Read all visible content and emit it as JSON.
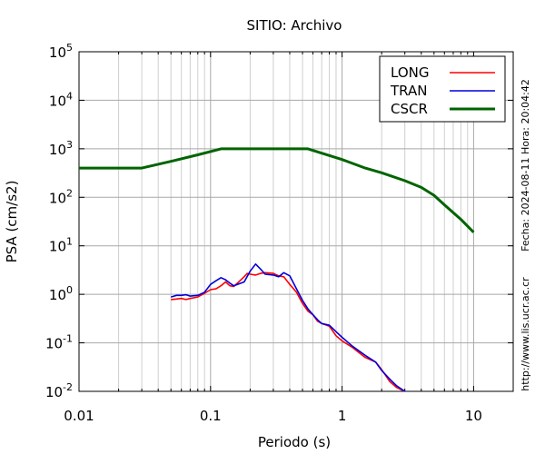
{
  "chart_data": {
    "type": "line",
    "title": "SITIO: Archivo",
    "xlabel": "Periodo (s)",
    "ylabel": "PSA (cm/s2)",
    "x_scale": "log",
    "y_scale": "log",
    "xlim": [
      0.01,
      20
    ],
    "ylim": [
      0.01,
      100000
    ],
    "x_ticks": [
      "0.01",
      "0.1",
      "1",
      "10"
    ],
    "y_ticks": [
      {
        "base": "10",
        "exp": "5",
        "value": 100000
      },
      {
        "base": "10",
        "exp": "4",
        "value": 10000
      },
      {
        "base": "10",
        "exp": "3",
        "value": 1000
      },
      {
        "base": "10",
        "exp": "2",
        "value": 100
      },
      {
        "base": "10",
        "exp": "1",
        "value": 10
      },
      {
        "base": "10",
        "exp": "0",
        "value": 1
      },
      {
        "base": "10",
        "exp": "-1",
        "value": 0.1
      },
      {
        "base": "10",
        "exp": "-2",
        "value": 0.01
      }
    ],
    "grid": true,
    "legend_position": "top-right",
    "side_labels": {
      "date": "Fecha: 2024-08-11  Hora: 20:04:42",
      "url": "http://www.lis.ucr.ac.cr"
    },
    "series": [
      {
        "name": "LONG",
        "color": "#ff0000",
        "points": [
          [
            0.05,
            0.78
          ],
          [
            0.055,
            0.8
          ],
          [
            0.06,
            0.82
          ],
          [
            0.065,
            0.78
          ],
          [
            0.07,
            0.82
          ],
          [
            0.08,
            0.88
          ],
          [
            0.09,
            1.05
          ],
          [
            0.1,
            1.25
          ],
          [
            0.11,
            1.3
          ],
          [
            0.12,
            1.5
          ],
          [
            0.13,
            1.8
          ],
          [
            0.14,
            1.5
          ],
          [
            0.15,
            1.45
          ],
          [
            0.16,
            1.7
          ],
          [
            0.18,
            2.3
          ],
          [
            0.19,
            2.7
          ],
          [
            0.2,
            2.6
          ],
          [
            0.22,
            2.5
          ],
          [
            0.24,
            2.7
          ],
          [
            0.26,
            2.8
          ],
          [
            0.3,
            2.7
          ],
          [
            0.33,
            2.4
          ],
          [
            0.36,
            2.3
          ],
          [
            0.4,
            1.6
          ],
          [
            0.45,
            1.1
          ],
          [
            0.5,
            0.65
          ],
          [
            0.55,
            0.45
          ],
          [
            0.6,
            0.38
          ],
          [
            0.65,
            0.28
          ],
          [
            0.7,
            0.25
          ],
          [
            0.8,
            0.22
          ],
          [
            0.9,
            0.14
          ],
          [
            1.0,
            0.11
          ],
          [
            1.2,
            0.08
          ],
          [
            1.5,
            0.05
          ],
          [
            1.8,
            0.04
          ],
          [
            2.0,
            0.028
          ],
          [
            2.3,
            0.016
          ],
          [
            2.6,
            0.012
          ],
          [
            3.0,
            0.01
          ]
        ]
      },
      {
        "name": "TRAN",
        "color": "#0000dd",
        "points": [
          [
            0.05,
            0.88
          ],
          [
            0.055,
            0.95
          ],
          [
            0.06,
            0.95
          ],
          [
            0.065,
            0.98
          ],
          [
            0.07,
            0.92
          ],
          [
            0.08,
            0.95
          ],
          [
            0.09,
            1.1
          ],
          [
            0.1,
            1.6
          ],
          [
            0.11,
            1.9
          ],
          [
            0.12,
            2.2
          ],
          [
            0.13,
            2.0
          ],
          [
            0.14,
            1.7
          ],
          [
            0.15,
            1.5
          ],
          [
            0.16,
            1.6
          ],
          [
            0.18,
            1.8
          ],
          [
            0.2,
            3.0
          ],
          [
            0.22,
            4.2
          ],
          [
            0.24,
            3.3
          ],
          [
            0.26,
            2.6
          ],
          [
            0.3,
            2.5
          ],
          [
            0.33,
            2.3
          ],
          [
            0.36,
            2.8
          ],
          [
            0.4,
            2.4
          ],
          [
            0.45,
            1.3
          ],
          [
            0.5,
            0.75
          ],
          [
            0.55,
            0.5
          ],
          [
            0.6,
            0.38
          ],
          [
            0.65,
            0.3
          ],
          [
            0.7,
            0.25
          ],
          [
            0.8,
            0.23
          ],
          [
            0.9,
            0.17
          ],
          [
            1.0,
            0.13
          ],
          [
            1.2,
            0.085
          ],
          [
            1.5,
            0.055
          ],
          [
            1.8,
            0.04
          ],
          [
            2.0,
            0.027
          ],
          [
            2.3,
            0.018
          ],
          [
            2.6,
            0.013
          ],
          [
            3.0,
            0.01
          ]
        ]
      },
      {
        "name": "CSCR",
        "color": "#006400",
        "points": [
          [
            0.01,
            400
          ],
          [
            0.03,
            400
          ],
          [
            0.05,
            550
          ],
          [
            0.08,
            750
          ],
          [
            0.12,
            1000
          ],
          [
            0.55,
            1000
          ],
          [
            1.0,
            600
          ],
          [
            1.5,
            400
          ],
          [
            2.0,
            320
          ],
          [
            3.0,
            220
          ],
          [
            4.0,
            160
          ],
          [
            5.0,
            110
          ],
          [
            6.0,
            70
          ],
          [
            8.0,
            35
          ],
          [
            10.0,
            19
          ]
        ]
      }
    ]
  }
}
